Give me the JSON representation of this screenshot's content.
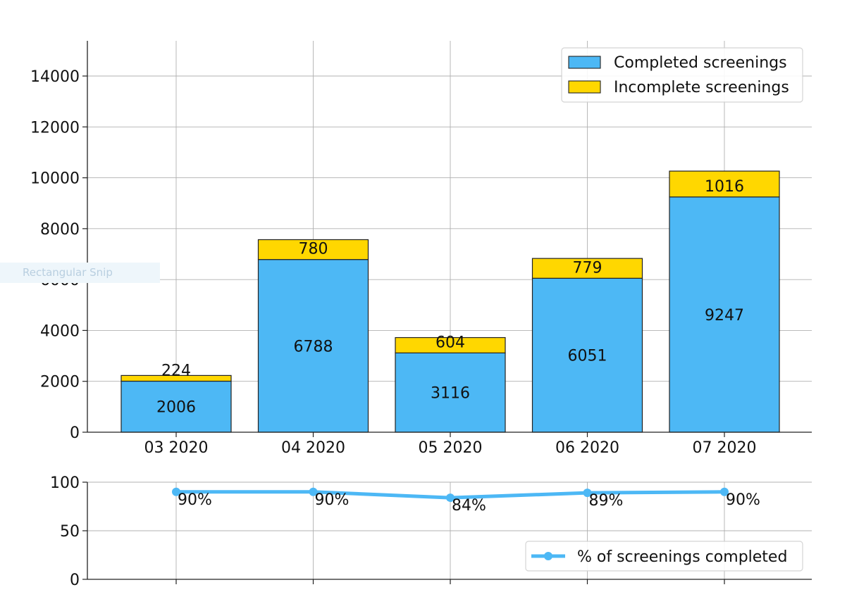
{
  "overlay": {
    "text": "Rectangular Snip"
  },
  "chart_data": [
    {
      "type": "bar",
      "stacked": true,
      "categories": [
        "03 2020",
        "04 2020",
        "05 2020",
        "06 2020",
        "07 2020"
      ],
      "series": [
        {
          "name": "Completed screenings",
          "values": [
            2006,
            6788,
            3116,
            6051,
            9247
          ],
          "color": "#4db8f5"
        },
        {
          "name": "Incomplete screenings",
          "values": [
            224,
            780,
            604,
            779,
            1016
          ],
          "color": "#ffd700"
        }
      ],
      "yticks": [
        0,
        2000,
        4000,
        6000,
        8000,
        10000,
        12000,
        14000
      ],
      "ylim": [
        0,
        15400
      ],
      "grid": true,
      "legend": "top-right"
    },
    {
      "type": "line",
      "categories": [
        "03 2020",
        "04 2020",
        "05 2020",
        "06 2020",
        "07 2020"
      ],
      "series": [
        {
          "name": "% of screenings completed",
          "values": [
            90,
            90,
            84,
            89,
            90
          ],
          "labels": [
            "90%",
            "90%",
            "84%",
            "89%",
            "90%"
          ],
          "color": "#4db8f5"
        }
      ],
      "yticks": [
        0,
        50,
        100
      ],
      "ylim": [
        0,
        100
      ],
      "grid": true,
      "legend": "bottom-right"
    }
  ]
}
